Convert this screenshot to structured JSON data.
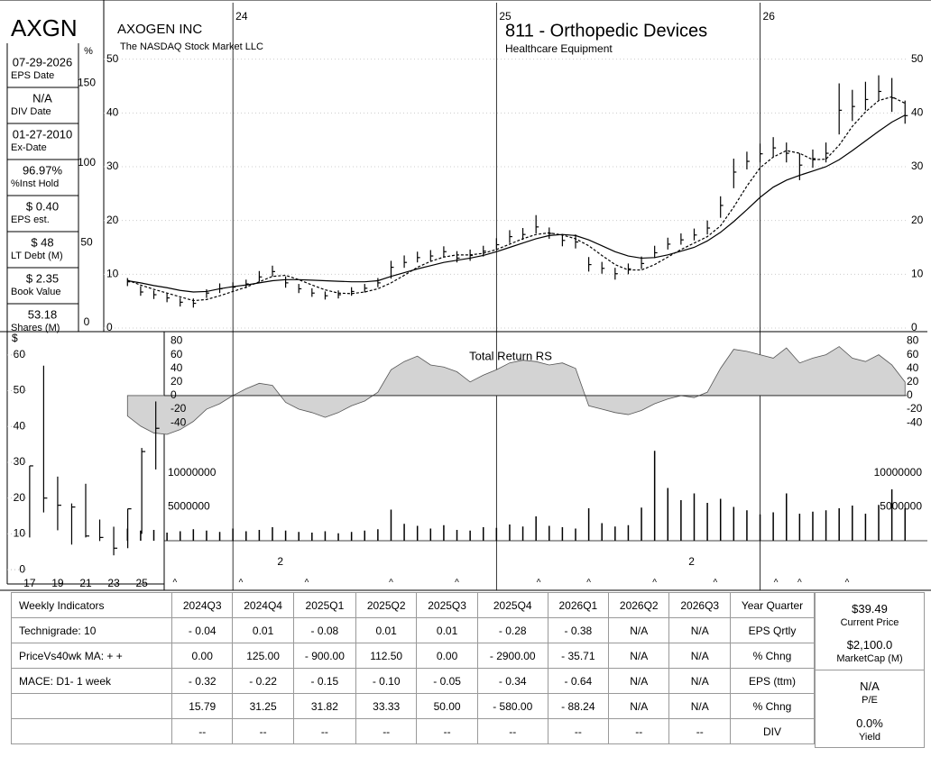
{
  "ticker": "AXGN",
  "info": [
    {
      "value": "07-29-2026",
      "label": "EPS Date"
    },
    {
      "value": "N/A",
      "label": "DIV Date"
    },
    {
      "value": "01-27-2010",
      "label": "Ex-Date"
    },
    {
      "value": "96.97%",
      "label": "%Inst Hold"
    },
    {
      "value": "$ 0.40",
      "label": "EPS est."
    },
    {
      "value": "$ 48",
      "label": "LT Debt (M)"
    },
    {
      "value": "$ 2.35",
      "label": "Book Value"
    },
    {
      "value": "53.18",
      "label": "Shares (M)"
    }
  ],
  "chart_data": [
    {
      "type": "stock",
      "company": "AXOGEN INC",
      "exchange": "The NASDAQ Stock Market LLC",
      "title": "811 - Orthopedic Devices",
      "subtitle": "Healthcare Equipment",
      "x": [
        23.6,
        23.65,
        23.7,
        23.75,
        23.8,
        23.85,
        23.9,
        23.95,
        24.0,
        24.05,
        24.1,
        24.15,
        24.2,
        24.25,
        24.3,
        24.35,
        24.4,
        24.45,
        24.5,
        24.55,
        24.6,
        24.65,
        24.7,
        24.75,
        24.8,
        24.85,
        24.9,
        24.95,
        25.0,
        25.05,
        25.1,
        25.15,
        25.2,
        25.25,
        25.3,
        25.35,
        25.4,
        25.45,
        25.5,
        25.55,
        25.6,
        25.65,
        25.7,
        25.75,
        25.8,
        25.85,
        25.9,
        25.95,
        26.0,
        26.05,
        26.1,
        26.15,
        26.2,
        26.25,
        26.3,
        26.35,
        26.4,
        26.45,
        26.5,
        26.55
      ],
      "xlim": [
        23.51,
        26.58
      ],
      "xticks": [
        24,
        25,
        26
      ],
      "price": {
        "ylim": [
          0,
          60
        ],
        "yticks": [
          0,
          10,
          20,
          30,
          40,
          50
        ],
        "grid": true,
        "color": "#000000",
        "high": [
          9.3,
          7.8,
          7.0,
          6.4,
          5.6,
          5.5,
          7.2,
          8.3,
          8.5,
          9.0,
          10.6,
          11.6,
          9.6,
          8.2,
          7.4,
          6.8,
          7.0,
          7.6,
          8.2,
          9.3,
          12.5,
          13.5,
          14.2,
          14.5,
          15.2,
          14.3,
          14.6,
          15.3,
          16.7,
          18.2,
          18.6,
          21.0,
          18.7,
          17.5,
          17.4,
          13.2,
          12.3,
          11.2,
          12.0,
          13.3,
          15.3,
          16.8,
          17.6,
          18.5,
          20.0,
          24.5,
          31.5,
          32.8,
          34.3,
          35.5,
          34.5,
          32.5,
          33.2,
          34.5,
          45.5,
          44.3,
          45.8,
          47.0,
          46.5,
          42.3
        ],
        "low": [
          7.8,
          6.0,
          5.4,
          4.8,
          4.0,
          3.8,
          5.6,
          6.5,
          6.8,
          7.4,
          8.6,
          9.6,
          7.5,
          6.5,
          5.8,
          5.3,
          5.5,
          6.0,
          6.6,
          7.6,
          9.2,
          11.2,
          12.2,
          12.5,
          13.2,
          12.2,
          12.5,
          13.3,
          14.5,
          15.8,
          16.4,
          17.6,
          16.6,
          15.2,
          14.8,
          10.5,
          10.1,
          9.0,
          10.0,
          11.0,
          13.0,
          14.6,
          15.5,
          16.3,
          17.4,
          20.5,
          26.0,
          29.5,
          30.8,
          31.8,
          30.8,
          27.5,
          29.8,
          30.8,
          36.0,
          38.5,
          40.5,
          42.3,
          40.2,
          38.0
        ],
        "close": [
          8.6,
          6.7,
          6.2,
          5.6,
          4.8,
          4.6,
          6.5,
          7.3,
          7.6,
          8.2,
          9.5,
          10.5,
          8.4,
          7.3,
          6.5,
          6.0,
          6.2,
          6.8,
          7.4,
          8.4,
          11.3,
          12.2,
          13.1,
          13.4,
          14.2,
          13.0,
          13.5,
          14.3,
          15.5,
          17.0,
          17.4,
          18.8,
          17.6,
          16.3,
          16.0,
          11.8,
          11.1,
          10.1,
          11.0,
          12.0,
          14.0,
          15.6,
          16.4,
          17.3,
          18.6,
          22.8,
          29.0,
          31.0,
          32.4,
          33.5,
          32.5,
          30.3,
          31.5,
          32.5,
          40.5,
          41.2,
          42.5,
          44.0,
          42.8,
          39.5
        ],
        "moving_averages": [
          {
            "style": "dashed",
            "color": "#000000",
            "values": [
              8.9,
              8.0,
              7.2,
              6.5,
              5.8,
              5.1,
              5.3,
              6.0,
              6.8,
              7.6,
              8.6,
              9.6,
              9.8,
              9.0,
              8.0,
              7.1,
              6.5,
              6.4,
              6.7,
              7.3,
              8.4,
              9.8,
              11.3,
              12.4,
              13.2,
              13.6,
              13.6,
              13.9,
              14.6,
              15.6,
              16.6,
              17.4,
              17.7,
              17.3,
              16.6,
              15.3,
              13.5,
              11.8,
              10.8,
              10.8,
              11.8,
              13.2,
              14.6,
              15.8,
              17.0,
              19.0,
              22.5,
              26.4,
              29.8,
              31.8,
              33.0,
              32.5,
              31.3,
              31.4,
              34.0,
              37.5,
              40.2,
              42.3,
              43.0,
              41.8
            ]
          },
          {
            "style": "solid",
            "color": "#000000",
            "values": [
              8.8,
              8.4,
              7.9,
              7.5,
              7.0,
              6.7,
              6.8,
              7.3,
              7.7,
              8.0,
              8.4,
              8.8,
              9.0,
              9.0,
              8.9,
              8.8,
              8.7,
              8.6,
              8.6,
              8.8,
              9.6,
              10.3,
              11.0,
              11.6,
              12.2,
              12.6,
              13.0,
              13.5,
              14.2,
              15.0,
              15.8,
              16.6,
              17.2,
              17.4,
              17.2,
              16.4,
              15.3,
              14.2,
              13.4,
              13.0,
              13.1,
              13.6,
              14.3,
              15.0,
              16.2,
              17.8,
              19.8,
              22.0,
              24.3,
              26.2,
              27.5,
              28.4,
              29.2,
              30.0,
              31.3,
              33.0,
              34.8,
              36.6,
              38.3,
              39.6
            ]
          }
        ],
        "pct_axis": {
          "label": "%",
          "ylim": [
            0,
            165
          ],
          "yticks": [
            0,
            50,
            100,
            150
          ]
        }
      },
      "rs": {
        "title": "Total Return RS",
        "ylim": [
          -65,
          90
        ],
        "yticks": [
          -40,
          -20,
          0,
          20,
          40,
          60,
          80
        ],
        "color": "#d3d3d3",
        "values": [
          -30,
          -45,
          -55,
          -57,
          -50,
          -38,
          -20,
          -12,
          0,
          10,
          18,
          15,
          -10,
          -20,
          -25,
          -32,
          -25,
          -15,
          -8,
          5,
          38,
          50,
          58,
          45,
          42,
          35,
          20,
          30,
          38,
          48,
          52,
          50,
          45,
          48,
          40,
          -15,
          -20,
          -25,
          -28,
          -22,
          -12,
          -5,
          0,
          -3,
          5,
          40,
          68,
          65,
          60,
          55,
          70,
          48,
          55,
          60,
          72,
          55,
          50,
          60,
          45,
          20
        ]
      },
      "volume": {
        "ylim": [
          0,
          10000000
        ],
        "yticks": [
          5000000,
          10000000
        ],
        "color": "#000000",
        "values": [
          1800000,
          1500000,
          1600000,
          1200000,
          1400000,
          1700000,
          1500000,
          1300000,
          1800000,
          1400000,
          1600000,
          2000000,
          1500000,
          1300000,
          1200000,
          1400000,
          1100000,
          1300000,
          1500000,
          1700000,
          4600000,
          2500000,
          2200000,
          1800000,
          2300000,
          1600000,
          1500000,
          2000000,
          1900000,
          2400000,
          2100000,
          3600000,
          2200000,
          2000000,
          1800000,
          4800000,
          2600000,
          2100000,
          2300000,
          4900000,
          13300000,
          7800000,
          6000000,
          7000000,
          5600000,
          6200000,
          5000000,
          4500000,
          3900000,
          4200000,
          7000000,
          4000000,
          4300000,
          4500000,
          4800000,
          5200000,
          4000000,
          5300000,
          7600000,
          4800000
        ]
      },
      "annotations": [
        {
          "label": "2",
          "x": 24.18
        },
        {
          "label": "2",
          "x": 25.74
        }
      ],
      "earnings_marks": {
        "label": "^",
        "x": [
          23.78,
          24.03,
          24.28,
          24.6,
          24.85,
          25.16,
          25.35,
          25.6,
          25.83,
          26.06,
          26.15,
          26.33
        ]
      }
    },
    {
      "type": "ohlc",
      "y_label": "$",
      "x": [
        17,
        18,
        19,
        20,
        21,
        22,
        23,
        24,
        25,
        26
      ],
      "xlim": [
        15.4,
        26.6
      ],
      "xticks": [
        17,
        19,
        21,
        23,
        25
      ],
      "ylim": [
        -4,
        66
      ],
      "yticks": [
        0,
        10,
        20,
        30,
        40,
        50,
        60
      ],
      "color": "#000000",
      "high": [
        29,
        57,
        26,
        18.5,
        24,
        14,
        12,
        17,
        34,
        47
      ],
      "low": [
        9,
        16,
        11,
        7,
        9,
        8,
        4,
        6,
        10,
        28
      ],
      "close": [
        29,
        20,
        18,
        17.5,
        9.4,
        9,
        6,
        17,
        33,
        39.5
      ]
    }
  ],
  "table": {
    "header": [
      "Weekly Indicators",
      "2024Q3",
      "2024Q4",
      "2025Q1",
      "2025Q2",
      "2025Q3",
      "2025Q4",
      "2026Q1",
      "2026Q2",
      "2026Q3",
      "Year Quarter"
    ],
    "rows": [
      [
        "Technigrade: 10",
        "- 0.04",
        "0.01",
        "- 0.08",
        "0.01",
        "0.01",
        "- 0.28",
        "- 0.38",
        "N/A",
        "N/A",
        "EPS Qrtly"
      ],
      [
        "PriceVs40wk MA:  + +",
        "0.00",
        "125.00",
        "- 900.00",
        "112.50",
        "0.00",
        "- 2900.00",
        "- 35.71",
        "N/A",
        "N/A",
        "% Chng"
      ],
      [
        "MACE: D1-  1 week",
        "- 0.32",
        "- 0.22",
        "- 0.15",
        "- 0.10",
        "- 0.05",
        "- 0.34",
        "- 0.64",
        "N/A",
        "N/A",
        "EPS (ttm)"
      ],
      [
        null,
        "15.79",
        "31.25",
        "31.82",
        "33.33",
        "50.00",
        "- 580.00",
        "- 88.24",
        "N/A",
        "N/A",
        "% Chng"
      ],
      [
        null,
        "--",
        "--",
        "--",
        "--",
        "--",
        "--",
        "--",
        "--",
        "--",
        "DIV"
      ]
    ]
  },
  "summary": [
    {
      "value": "$39.49",
      "label": "Current Price"
    },
    {
      "value": "$2,100.0",
      "label": "MarketCap (M)"
    },
    {
      "value": "N/A",
      "label": "P/E"
    },
    {
      "value": "0.0%",
      "label": "Yield"
    }
  ]
}
